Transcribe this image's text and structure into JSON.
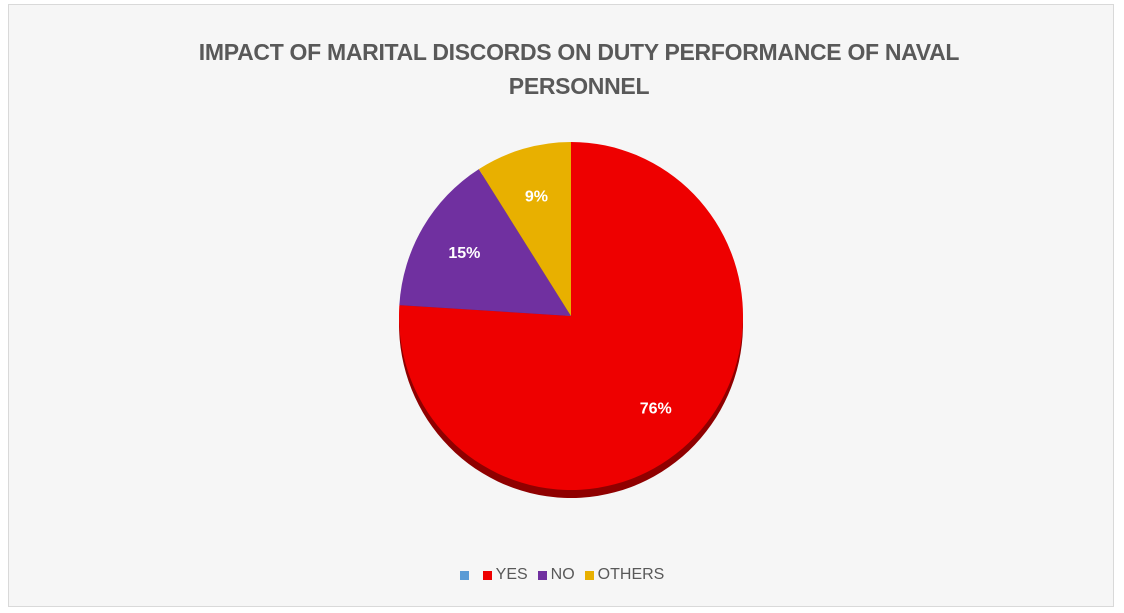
{
  "chart_data": {
    "type": "pie",
    "title": "IMPACT OF MARITAL DISCORDS ON DUTY PERFORMANCE OF NAVAL PERSONNEL",
    "legend_position": "bottom",
    "slices": [
      {
        "name": "",
        "value": 0,
        "label": "",
        "color": "#5b9bd5"
      },
      {
        "name": "YES",
        "value": 76,
        "label": "76%",
        "color": "#ee0000"
      },
      {
        "name": "NO",
        "value": 15,
        "label": "15%",
        "color": "#7030a0"
      },
      {
        "name": "OTHERS",
        "value": 9,
        "label": "9%",
        "color": "#e8b000"
      }
    ]
  }
}
